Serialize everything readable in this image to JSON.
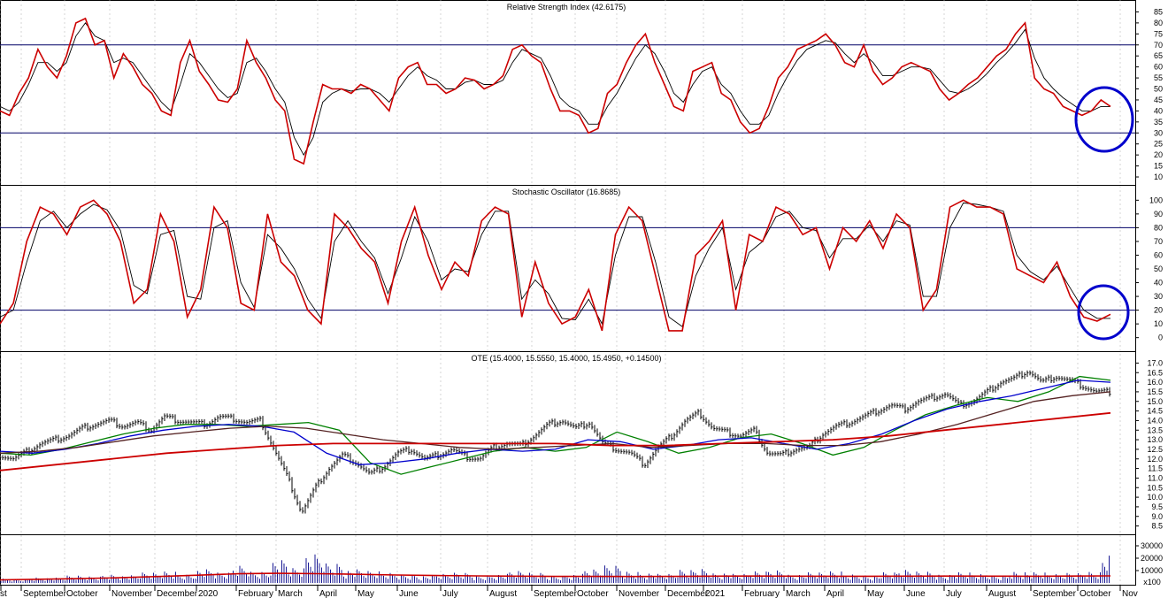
{
  "chart_data": [
    {
      "type": "line",
      "title": "Relative Strength Index (42.6175)",
      "yticks": [
        10,
        15,
        20,
        25,
        30,
        35,
        40,
        45,
        50,
        55,
        60,
        65,
        70,
        75,
        80,
        85
      ],
      "ylim": [
        8,
        88
      ],
      "reference_lines": [
        30,
        70
      ],
      "series": [
        {
          "color": "#cc0000",
          "values": [
            40,
            38,
            48,
            55,
            68,
            60,
            55,
            65,
            80,
            82,
            70,
            72,
            55,
            66,
            60,
            52,
            48,
            40,
            38,
            62,
            72,
            58,
            52,
            45,
            44,
            50,
            72,
            62,
            55,
            45,
            40,
            18,
            16,
            35,
            52,
            50,
            50,
            48,
            52,
            50,
            45,
            40,
            55,
            60,
            62,
            52,
            52,
            48,
            50,
            55,
            54,
            50,
            52,
            56,
            68,
            70,
            65,
            62,
            50,
            40,
            40,
            38,
            30,
            32,
            48,
            52,
            62,
            70,
            75,
            62,
            52,
            42,
            40,
            58,
            60,
            62,
            48,
            45,
            35,
            30,
            32,
            42,
            55,
            60,
            68,
            70,
            72,
            75,
            70,
            62,
            60,
            70,
            58,
            52,
            55,
            60,
            62,
            60,
            58,
            50,
            45,
            48,
            52,
            55,
            60,
            65,
            68,
            75,
            80,
            55,
            50,
            48,
            42,
            40,
            38,
            40,
            45,
            42
          ]
        },
        {
          "color": "#000000",
          "values": [
            42,
            40,
            44,
            52,
            62,
            62,
            58,
            62,
            74,
            80,
            74,
            72,
            62,
            64,
            62,
            56,
            50,
            44,
            40,
            52,
            66,
            62,
            56,
            50,
            46,
            48,
            62,
            64,
            58,
            50,
            44,
            28,
            20,
            28,
            44,
            48,
            50,
            49,
            50,
            50,
            48,
            44,
            50,
            56,
            60,
            56,
            54,
            50,
            50,
            53,
            54,
            52,
            52,
            54,
            62,
            68,
            66,
            64,
            56,
            46,
            42,
            40,
            34,
            34,
            42,
            48,
            56,
            64,
            70,
            66,
            58,
            48,
            44,
            52,
            58,
            60,
            52,
            48,
            40,
            34,
            34,
            38,
            48,
            56,
            63,
            68,
            70,
            72,
            71,
            66,
            62,
            66,
            62,
            56,
            56,
            58,
            60,
            60,
            59,
            54,
            49,
            48,
            50,
            53,
            57,
            62,
            66,
            71,
            77,
            64,
            55,
            50,
            46,
            43,
            40,
            40,
            42,
            42
          ]
        }
      ],
      "annotation": "circle at latest values"
    },
    {
      "type": "line",
      "title": "Stochastic Oscillator (16.8685)",
      "yticks": [
        0,
        10,
        20,
        30,
        40,
        50,
        60,
        70,
        80,
        90,
        100
      ],
      "ylim": [
        -6,
        106
      ],
      "reference_lines": [
        20,
        80
      ],
      "series": [
        {
          "color": "#cc0000",
          "values": [
            10,
            25,
            70,
            95,
            90,
            75,
            95,
            100,
            90,
            70,
            25,
            35,
            90,
            70,
            15,
            35,
            95,
            80,
            25,
            20,
            90,
            55,
            45,
            20,
            10,
            90,
            80,
            65,
            55,
            25,
            70,
            95,
            60,
            35,
            55,
            45,
            85,
            95,
            90,
            15,
            55,
            25,
            10,
            15,
            35,
            5,
            75,
            95,
            85,
            45,
            5,
            5,
            60,
            70,
            85,
            20,
            75,
            70,
            95,
            90,
            75,
            80,
            50,
            80,
            70,
            85,
            65,
            90,
            80,
            20,
            35,
            95,
            100,
            95,
            95,
            90,
            50,
            45,
            40,
            55,
            30,
            15,
            12,
            17
          ]
        },
        {
          "color": "#000000",
          "values": [
            15,
            20,
            55,
            85,
            92,
            80,
            90,
            97,
            93,
            78,
            38,
            32,
            75,
            78,
            30,
            28,
            80,
            85,
            40,
            22,
            75,
            65,
            50,
            28,
            14,
            70,
            85,
            70,
            58,
            32,
            58,
            88,
            70,
            42,
            50,
            48,
            75,
            92,
            92,
            28,
            42,
            32,
            14,
            13,
            28,
            10,
            60,
            88,
            88,
            55,
            15,
            8,
            45,
            65,
            80,
            35,
            62,
            70,
            88,
            92,
            80,
            78,
            58,
            72,
            72,
            82,
            70,
            85,
            82,
            30,
            30,
            80,
            98,
            97,
            95,
            92,
            60,
            48,
            42,
            52,
            36,
            20,
            14,
            14
          ]
        }
      ],
      "annotation": "circle at latest values"
    },
    {
      "type": "line",
      "title": "OTE (15.4000, 15.5550, 15.4000, 15.4950, +0.14500)",
      "yticks": [
        8.5,
        9.0,
        9.5,
        10.0,
        10.5,
        11.0,
        11.5,
        12.0,
        12.5,
        13.0,
        13.5,
        14.0,
        14.5,
        15.0,
        15.5,
        16.0,
        16.5,
        17.0
      ],
      "ylim": [
        8.25,
        17.25
      ],
      "price_bars": [
        12.2,
        12.0,
        12.4,
        12.8,
        13.0,
        13.2,
        13.6,
        13.8,
        14.0,
        13.7,
        13.9,
        13.5,
        14.2,
        14.0,
        13.9,
        13.8,
        14.2,
        14.1,
        13.9,
        14.0,
        12.5,
        11.0,
        9.2,
        10.5,
        11.5,
        12.2,
        11.8,
        11.2,
        11.6,
        12.3,
        12.5,
        12.0,
        12.2,
        12.5,
        12.1,
        12.0,
        12.6,
        12.8,
        12.7,
        13.2,
        13.8,
        14.0,
        13.6,
        13.9,
        12.8,
        12.5,
        12.3,
        11.7,
        12.6,
        13.2,
        14.0,
        14.4,
        13.6,
        13.4,
        13.2,
        13.5,
        12.3,
        12.2,
        12.5,
        12.6,
        13.3,
        13.7,
        13.9,
        14.2,
        14.5,
        14.8,
        14.6,
        15.0,
        15.2,
        15.4,
        14.8,
        15.0,
        15.5,
        16.0,
        16.2,
        16.6,
        16.0,
        16.3,
        16.1,
        15.8,
        15.5,
        15.5
      ],
      "series": [
        {
          "color": "#008000",
          "values": [
            12.3,
            12.2,
            12.5,
            12.9,
            13.3,
            13.6,
            13.8,
            13.8,
            13.7,
            13.8,
            13.9,
            13.5,
            11.8,
            11.2,
            11.6,
            12.0,
            12.4,
            12.6,
            12.4,
            12.6,
            13.4,
            12.9,
            12.3,
            12.6,
            13.1,
            13.3,
            12.8,
            12.2,
            12.6,
            13.5,
            14.3,
            14.8,
            15.2,
            15.0,
            15.5,
            16.3,
            16.1
          ]
        },
        {
          "color": "#0000cc",
          "values": [
            12.4,
            12.3,
            12.5,
            12.8,
            13.2,
            13.5,
            13.7,
            13.8,
            13.7,
            13.4,
            12.3,
            11.7,
            11.8,
            12.0,
            12.3,
            12.5,
            12.4,
            12.5,
            13.0,
            12.9,
            12.5,
            12.7,
            13.0,
            13.1,
            12.8,
            12.5,
            12.8,
            13.3,
            14.0,
            14.6,
            15.0,
            15.3,
            15.7,
            16.1,
            16.0
          ]
        },
        {
          "color": "#552222",
          "values": [
            12.3,
            12.4,
            12.6,
            12.9,
            13.2,
            13.4,
            13.6,
            13.7,
            13.6,
            13.3,
            13.0,
            12.8,
            12.6,
            12.5,
            12.6,
            12.7,
            12.8,
            12.6,
            12.7,
            12.8,
            12.8,
            12.7,
            12.7,
            12.9,
            13.3,
            13.8,
            14.4,
            15.0,
            15.3,
            15.5
          ]
        },
        {
          "color": "#cc0000",
          "values": [
            11.4,
            11.7,
            12.0,
            12.3,
            12.5,
            12.7,
            12.8,
            12.8,
            12.8,
            12.8,
            12.8,
            12.7,
            12.7,
            12.8,
            12.9,
            13.0,
            13.2,
            13.5,
            13.8,
            14.1,
            14.4
          ]
        }
      ],
      "annotation": "none"
    },
    {
      "type": "bar",
      "title": "",
      "yticks": [
        10000,
        20000,
        30000
      ],
      "ylim": [
        0,
        35000
      ],
      "units_tag": "x100",
      "volume_ma": [
        2500,
        3000,
        3500,
        4200,
        5200,
        6300,
        7400,
        7800,
        7500,
        7000,
        6400,
        6000,
        5700,
        5500,
        5300,
        5300,
        5200,
        5300,
        5500,
        5600,
        5500,
        5400,
        5400,
        5500,
        5600,
        5500,
        5400,
        5600,
        5700
      ],
      "volume": [
        3000,
        2500,
        4000,
        3500,
        5000,
        4500,
        6000,
        5000,
        7000,
        8000,
        6000,
        9000,
        7000,
        12000,
        8000,
        15000,
        10000,
        20000,
        14000,
        9000,
        8000,
        7000,
        6000,
        5000,
        6000,
        7000,
        5000,
        6000,
        8000,
        7000,
        5000,
        6000,
        9000,
        12000,
        8000,
        7000,
        6000,
        9000,
        10000,
        7000,
        6000,
        8000,
        9000,
        6000,
        7000,
        8000,
        6000,
        5000,
        7000,
        9000,
        8000,
        6000,
        7000,
        6000,
        5000,
        8000,
        7000,
        6000,
        7000,
        8000,
        18000
      ]
    }
  ],
  "x_axis": {
    "labels": [
      "st",
      "September",
      "October",
      "November",
      "December",
      "2020",
      "February",
      "March",
      "April",
      "May",
      "June",
      "July",
      "August",
      "September",
      "October",
      "November",
      "December",
      "2021",
      "February",
      "March",
      "April",
      "May",
      "June",
      "July",
      "August",
      "September",
      "October",
      "Nov"
    ]
  }
}
